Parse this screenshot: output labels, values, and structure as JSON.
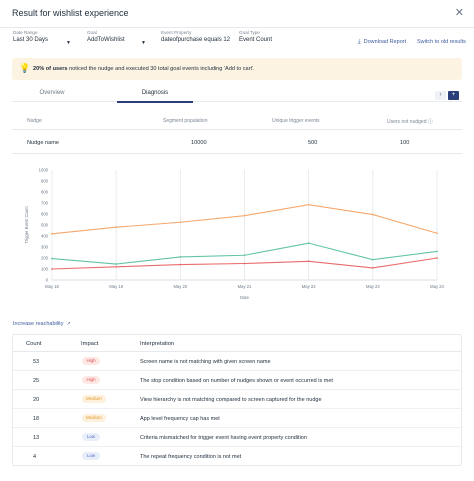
{
  "header": {
    "title": "Result for wishlist experience",
    "close": "✕"
  },
  "filters": {
    "date_range": {
      "label": "Date Range",
      "value": "Last 30 Days"
    },
    "goal": {
      "label": "Goal",
      "value": "AddToWishlist"
    },
    "event_property": {
      "label": "Event Property",
      "value": "dateofpurchase equals 12"
    },
    "goal_type": {
      "label": "Goal Type",
      "value": "Event Count"
    },
    "download_report": "Download Report",
    "switch_results": "Switch to old results"
  },
  "alert": {
    "highlight": "20% of users",
    "text": " noticed the nudge and executed 30 total goal events including 'Add to cart'."
  },
  "tabs": {
    "overview": "Overview",
    "diagnosis": "Diagnosis",
    "active": "diagnosis"
  },
  "nudge_table": {
    "headers": [
      "Nudge",
      "Segment population",
      "Unique trigger events",
      "Users not nudged"
    ],
    "row": [
      "Nudge name",
      "10000",
      "500",
      "100"
    ]
  },
  "chart_data": {
    "type": "line",
    "ylabel": "Trigger Event Count",
    "xlabel": "Date",
    "categories": [
      "May 18",
      "May 19",
      "May 20",
      "May 21",
      "May 22",
      "May 23",
      "May 24"
    ],
    "ylim": [
      0,
      1000
    ],
    "yticks": [
      0,
      100,
      200,
      300,
      400,
      500,
      600,
      700,
      800,
      900,
      1000
    ],
    "grid": "vertical",
    "series": [
      {
        "color": "#f5a76c",
        "values": [
          420,
          480,
          525,
          585,
          685,
          595,
          425
        ]
      },
      {
        "color": "#63c3a5",
        "values": [
          195,
          145,
          210,
          225,
          335,
          185,
          260
        ]
      },
      {
        "color": "#e96b6b",
        "values": [
          100,
          120,
          140,
          150,
          170,
          110,
          200
        ]
      }
    ]
  },
  "reach_link": "Increase reachability",
  "impact_table": {
    "headers": [
      "Count",
      "Impact",
      "Interpretation"
    ],
    "rows": [
      {
        "count": "53",
        "impact": "High",
        "level": "high",
        "interpretation": "Screen name is not matching with given screen name"
      },
      {
        "count": "25",
        "impact": "High",
        "level": "high",
        "interpretation": "The stop condition based on number of nudges shown or event occurred is met"
      },
      {
        "count": "20",
        "impact": "Medium",
        "level": "medium",
        "interpretation": "View hierarchy is not matching compared to screen captured for the nudge"
      },
      {
        "count": "18",
        "impact": "Medium",
        "level": "medium",
        "interpretation": "App level frequency cap has met"
      },
      {
        "count": "13",
        "impact": "Low",
        "level": "low",
        "interpretation": "Criteria mismatched for trigger event having event property condition"
      },
      {
        "count": "4",
        "impact": "Low",
        "level": "low",
        "interpretation": "The repeat frequency condition is not met"
      }
    ]
  }
}
